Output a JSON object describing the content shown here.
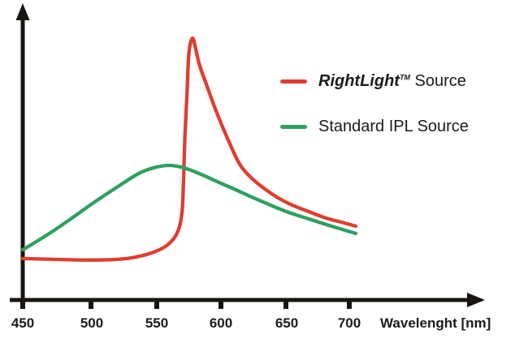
{
  "chart_data": {
    "type": "line",
    "title": "",
    "xlabel": "Wavelenght [nm]",
    "ylabel": "",
    "x_axis": {
      "min": 450,
      "max": 700,
      "tick_values": [
        450,
        500,
        550,
        600,
        650,
        700
      ],
      "tick_labels": [
        "450",
        "500",
        "550",
        "600",
        "650",
        "700"
      ]
    },
    "y_axis": {
      "label": "",
      "scale_shown": false,
      "unit": "relative intensity (arbitrary units)",
      "ylim": [
        0,
        1
      ]
    },
    "grid": false,
    "legend_position": "upper right",
    "legend": [
      {
        "brand": "RightLight",
        "tm": "TM",
        "rest": " Source",
        "color": "#e13c30"
      },
      {
        "label": "Standard IPL Source",
        "color": "#2fa05e"
      }
    ],
    "series": [
      {
        "name": "RightLight Source",
        "color": "#e13c30",
        "points": [
          [
            450,
            0.142
          ],
          [
            476,
            0.139
          ],
          [
            501,
            0.136
          ],
          [
            526,
            0.139
          ],
          [
            541,
            0.15
          ],
          [
            554,
            0.169
          ],
          [
            563,
            0.194
          ],
          [
            569,
            0.231
          ],
          [
            572,
            0.289
          ],
          [
            573,
            0.389
          ],
          [
            574,
            0.556
          ],
          [
            576,
            0.722
          ],
          [
            577,
            0.856
          ],
          [
            580,
            0.908
          ],
          [
            582,
            0.869
          ],
          [
            585,
            0.806
          ],
          [
            590,
            0.747
          ],
          [
            595,
            0.683
          ],
          [
            600,
            0.625
          ],
          [
            606,
            0.561
          ],
          [
            612,
            0.5
          ],
          [
            617,
            0.456
          ],
          [
            625,
            0.417
          ],
          [
            635,
            0.381
          ],
          [
            645,
            0.35
          ],
          [
            656,
            0.325
          ],
          [
            669,
            0.303
          ],
          [
            681,
            0.281
          ],
          [
            694,
            0.267
          ],
          [
            705,
            0.253
          ]
        ]
      },
      {
        "name": "Standard IPL Source",
        "color": "#2fa05e",
        "points": [
          [
            450,
            0.172
          ],
          [
            467,
            0.217
          ],
          [
            485,
            0.272
          ],
          [
            504,
            0.333
          ],
          [
            523,
            0.389
          ],
          [
            541,
            0.442
          ],
          [
            557,
            0.461
          ],
          [
            566,
            0.461
          ],
          [
            576,
            0.45
          ],
          [
            588,
            0.428
          ],
          [
            600,
            0.403
          ],
          [
            613,
            0.378
          ],
          [
            625,
            0.353
          ],
          [
            638,
            0.328
          ],
          [
            653,
            0.3
          ],
          [
            669,
            0.278
          ],
          [
            684,
            0.256
          ],
          [
            705,
            0.228
          ]
        ]
      }
    ]
  }
}
